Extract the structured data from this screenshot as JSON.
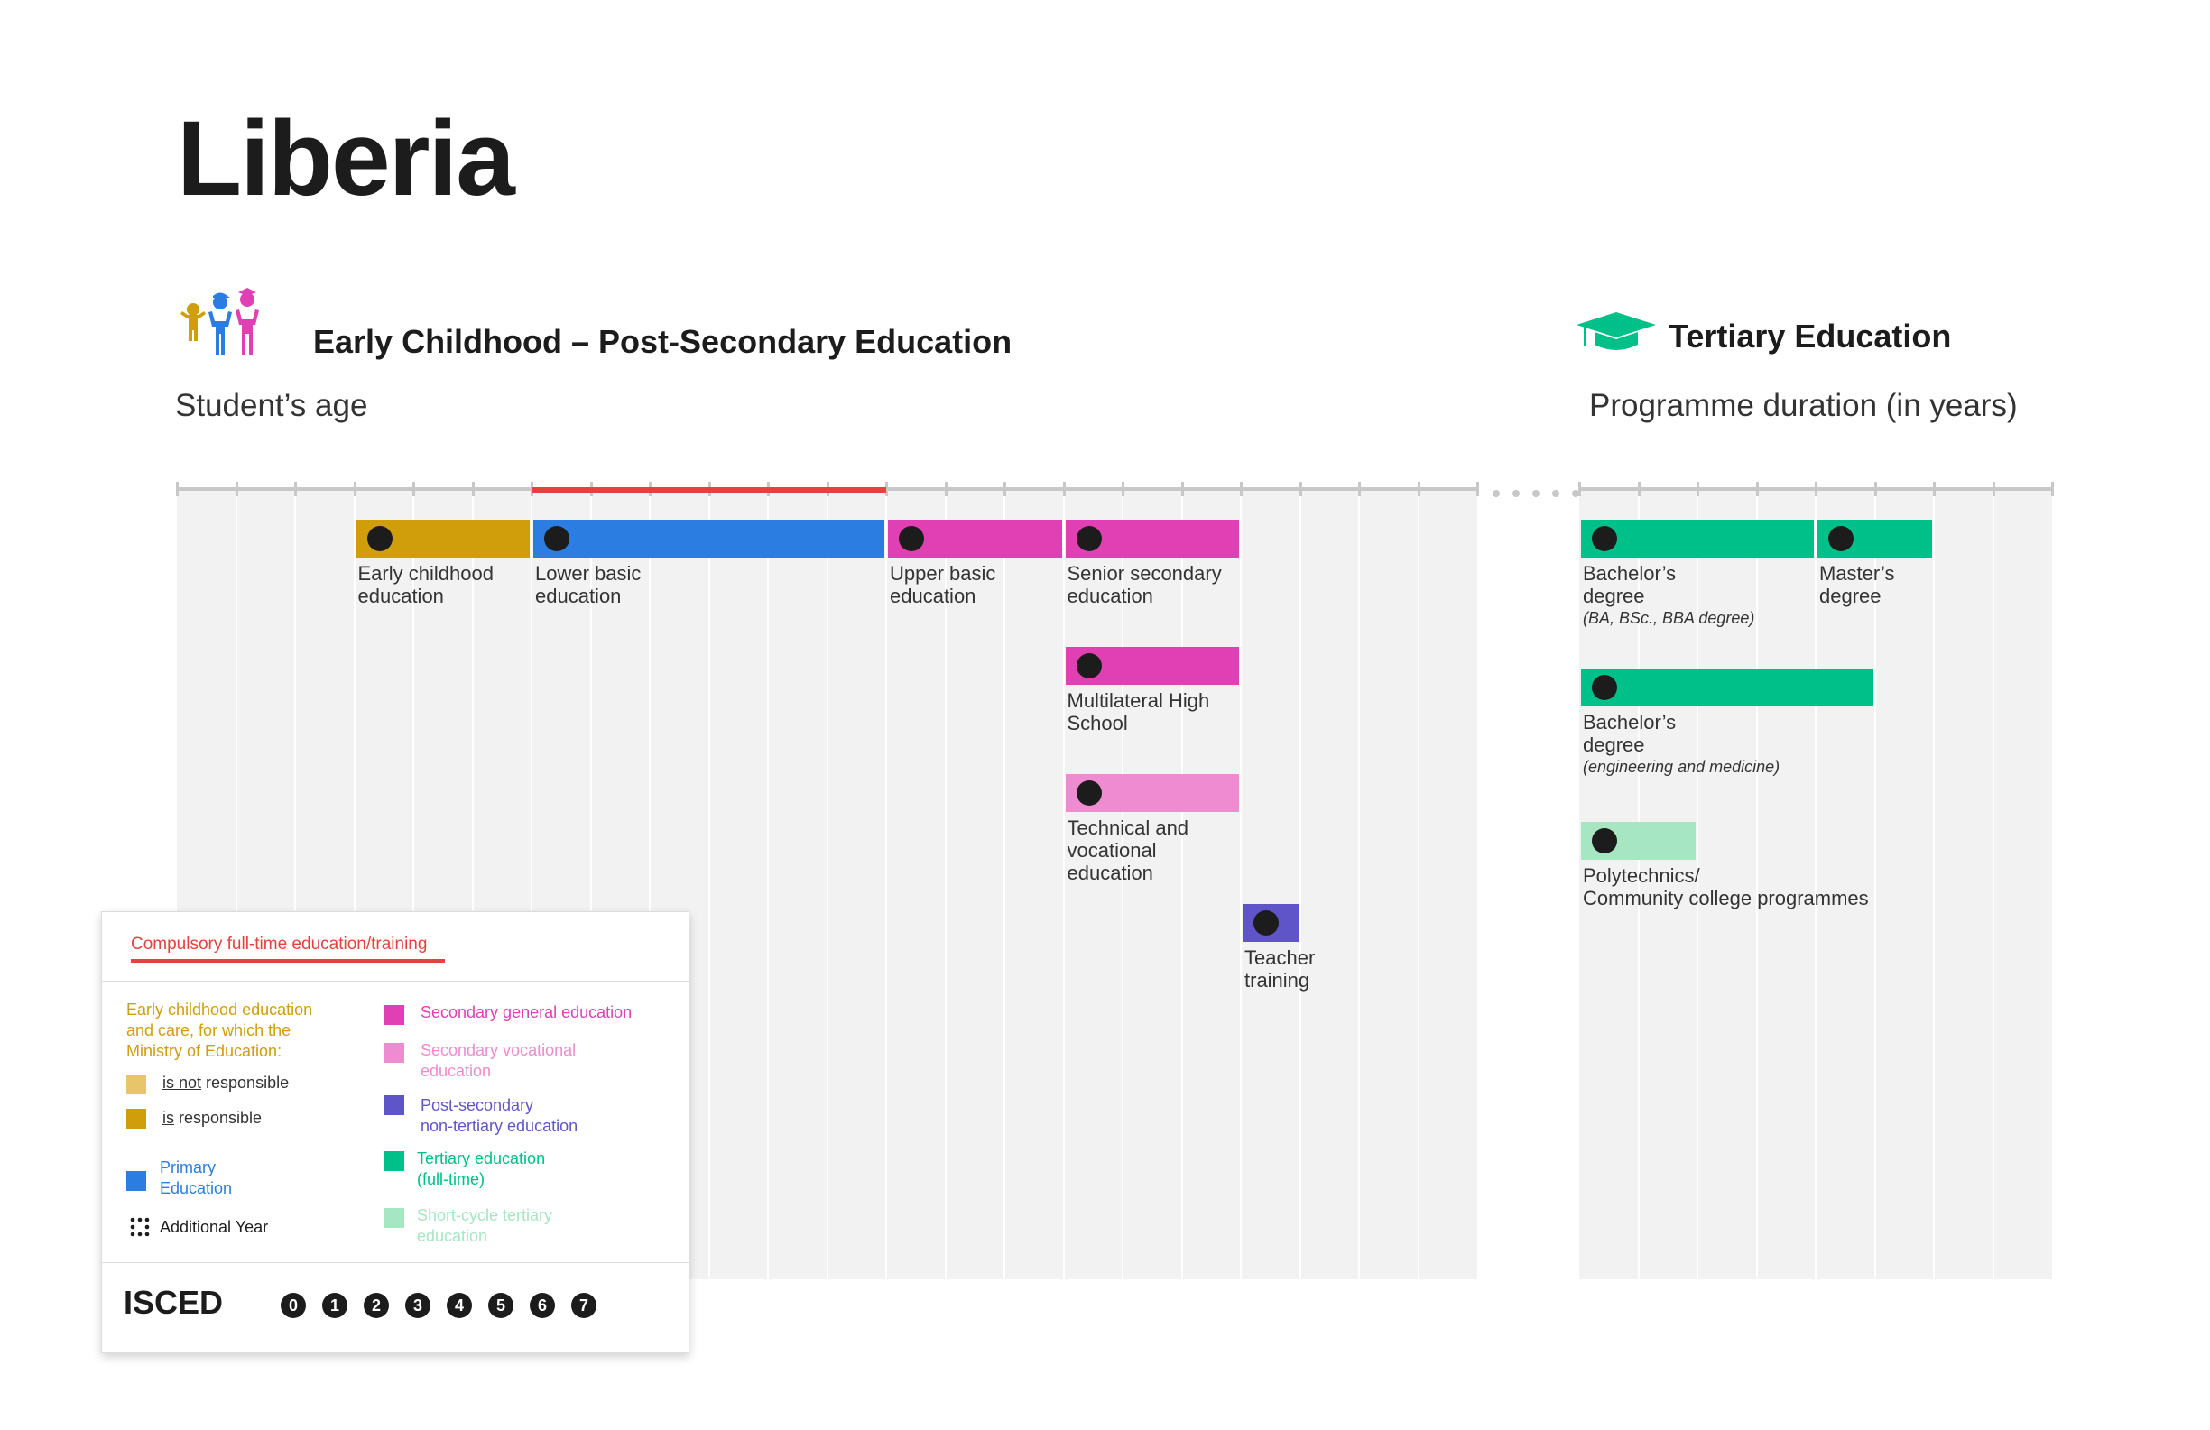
{
  "title": "Liberia",
  "sections": {
    "left": "Early Childhood – Post-Secondary Education",
    "right": "Tertiary Education"
  },
  "axes": {
    "age_title": "Student’s age",
    "duration_title": "Programme duration (in years)",
    "age_ticks": [
      "0",
      "1",
      "2",
      "3",
      "4",
      "5",
      "6",
      "7",
      "8",
      "9",
      "10",
      "11",
      "12",
      "13",
      "14",
      "15",
      "16",
      "17",
      "18",
      "19",
      "20",
      "21",
      "22"
    ],
    "duration_ticks": [
      "0",
      "1",
      "2",
      "3",
      "4",
      "5",
      "6",
      "7",
      "8"
    ],
    "compulsory_range": [
      6,
      12
    ]
  },
  "colors": {
    "ecce": "#d09e0b",
    "ecce_light": "#e8c56b",
    "primary": "#2b7de1",
    "secondary_general": "#e040b3",
    "secondary_vocational": "#ef8bd0",
    "post_secondary": "#5f55c9",
    "tertiary": "#00c089",
    "short_cycle": "#a6e6c3",
    "compulsory": "#e8403f"
  },
  "programmes_age": [
    {
      "isced": "0",
      "label1": "Early childhood",
      "label2": "education",
      "start": 3,
      "end": 6,
      "row": 0,
      "color": "ecce"
    },
    {
      "isced": "1",
      "label1": "Lower basic",
      "label2": "education",
      "start": 6,
      "end": 12,
      "row": 0,
      "color": "primary"
    },
    {
      "isced": "2",
      "label1": "Upper basic",
      "label2": "education",
      "start": 12,
      "end": 15,
      "row": 0,
      "color": "secondary_general"
    },
    {
      "isced": "3",
      "label1": "Senior secondary",
      "label2": "education",
      "start": 15,
      "end": 18,
      "row": 0,
      "color": "secondary_general"
    },
    {
      "isced": "3",
      "label1": "Multilateral High",
      "label2": "School",
      "start": 15,
      "end": 18,
      "row": 1,
      "color": "secondary_general"
    },
    {
      "isced": "3",
      "label1": "Technical and",
      "label2": "vocational",
      "label3": "education",
      "start": 15,
      "end": 18,
      "row": 2,
      "color": "secondary_vocational"
    },
    {
      "isced": "4",
      "label1": "Teacher",
      "label2": "training",
      "start": 18,
      "end": 19,
      "row": 3,
      "color": "post_secondary"
    }
  ],
  "programmes_duration": [
    {
      "isced": "6",
      "label1": "Bachelor’s",
      "label2": "degree",
      "note": "(BA, BSc., BBA degree)",
      "start": 0,
      "end": 4,
      "row": 0,
      "color": "tertiary"
    },
    {
      "isced": "7",
      "label1": "Master’s",
      "label2": "degree",
      "start": 4,
      "end": 6,
      "row": 0,
      "color": "tertiary"
    },
    {
      "isced": "6",
      "label1": "Bachelor’s",
      "label2": "degree",
      "note": "(engineering and medicine)",
      "start": 0,
      "end": 5,
      "row": 1,
      "color": "tertiary"
    },
    {
      "isced": "5",
      "label1": "Polytechnics/",
      "label2": "Community college programmes",
      "start": 0,
      "end": 2,
      "row": 2,
      "color": "short_cycle"
    }
  ],
  "legend": {
    "compulsory": "Compulsory full-time education/training",
    "ecce_heading_1": "Early childhood education",
    "ecce_heading_2": "and care, for which the",
    "ecce_heading_3": "Ministry of Education:",
    "not_word": "is not",
    "not_rest": " responsible",
    "is_word": "is",
    "is_rest": " responsible",
    "primary_1": "Primary",
    "primary_2": "Education",
    "additional": "Additional Year",
    "sec_general": "Secondary general education",
    "sec_voc_1": "Secondary vocational",
    "sec_voc_2": "education",
    "post_sec_1": "Post-secondary",
    "post_sec_2": "non-tertiary education",
    "tertiary_1": "Tertiary education",
    "tertiary_2": "(full-time)",
    "short_cycle_1": "Short-cycle tertiary",
    "short_cycle_2": "education",
    "isced_label": "ISCED",
    "isced_levels": [
      "0",
      "1",
      "2",
      "3",
      "4",
      "5",
      "6",
      "7"
    ]
  }
}
